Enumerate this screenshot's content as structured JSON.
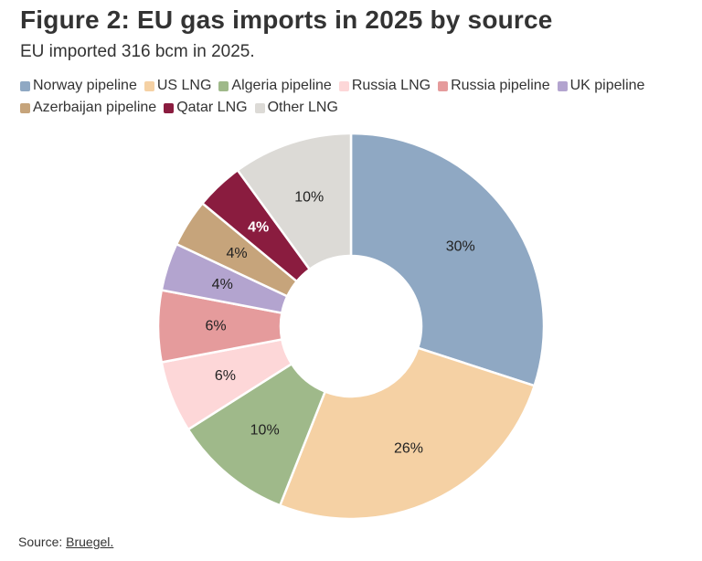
{
  "title": "Figure 2: EU gas imports in 2025 by source",
  "subtitle": "EU imported 316 bcm in 2025.",
  "source": {
    "prefix": "Source:",
    "link": "Bruegel."
  },
  "chart_data": {
    "type": "pie",
    "donut": true,
    "legend_position": "top",
    "series": [
      {
        "name": "Norway pipeline",
        "value": 30,
        "label": "30%",
        "color": "#8fa8c3",
        "label_color": "#222222"
      },
      {
        "name": "US LNG",
        "value": 26,
        "label": "26%",
        "color": "#f5d1a4",
        "label_color": "#222222"
      },
      {
        "name": "Algeria pipeline",
        "value": 10,
        "label": "10%",
        "color": "#9fb98a",
        "label_color": "#222222"
      },
      {
        "name": "Russia LNG",
        "value": 6,
        "label": "6%",
        "color": "#fdd7d8",
        "label_color": "#222222"
      },
      {
        "name": "Russia pipeline",
        "value": 6,
        "label": "6%",
        "color": "#e59b9c",
        "label_color": "#222222"
      },
      {
        "name": "UK pipeline",
        "value": 4,
        "label": "4%",
        "color": "#b3a4cf",
        "label_color": "#222222"
      },
      {
        "name": "Azerbaijan pipeline",
        "value": 4,
        "label": "4%",
        "color": "#c6a47b",
        "label_color": "#222222"
      },
      {
        "name": "Qatar LNG",
        "value": 4,
        "label": "4%",
        "color": "#8a1c3f",
        "label_color": "#ffffff"
      },
      {
        "name": "Other LNG",
        "value": 10,
        "label": "10%",
        "color": "#dcdad6",
        "label_color": "#222222"
      }
    ]
  }
}
